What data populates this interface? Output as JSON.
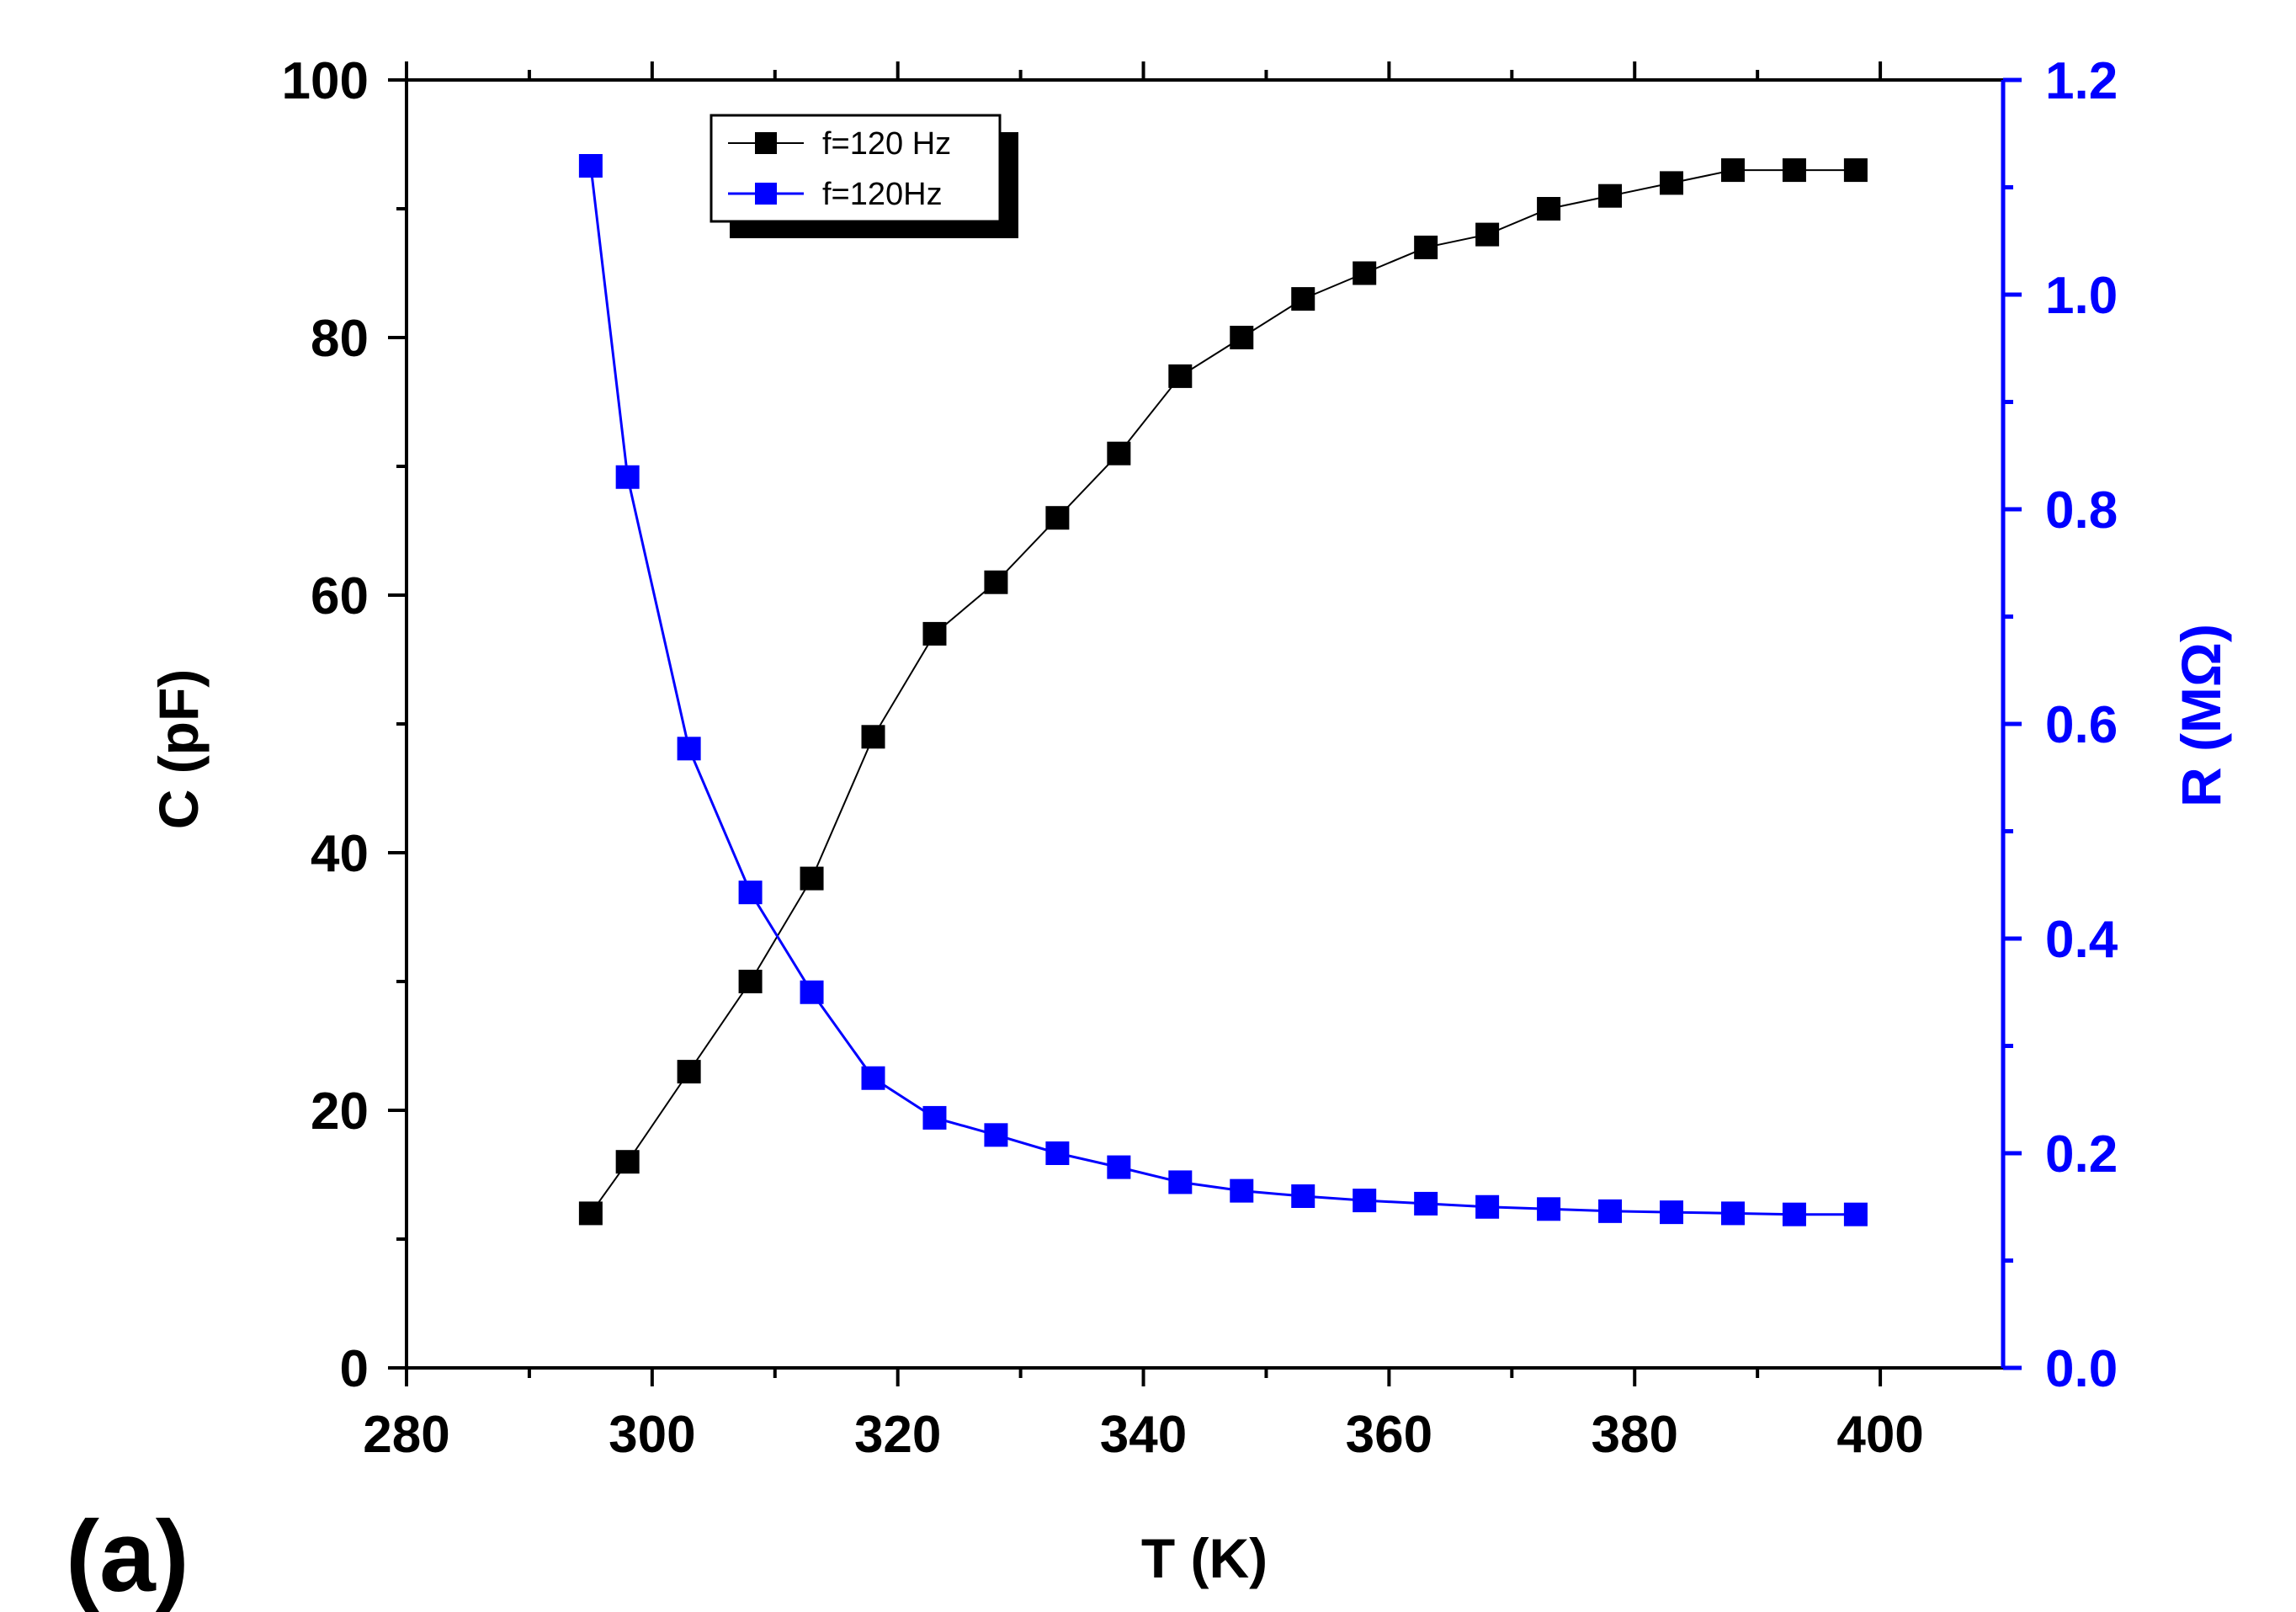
{
  "chart_data": {
    "type": "line",
    "title": "",
    "panel_label": "(a)",
    "xlabel": "T (K)",
    "ylabel": "C (pF)",
    "y2label": "R (MΩ)",
    "xlim": [
      280,
      410
    ],
    "ylim": [
      0,
      100
    ],
    "y2lim": [
      0,
      1.2
    ],
    "xticks": [
      280,
      300,
      320,
      340,
      360,
      380,
      400
    ],
    "yticks": [
      0,
      20,
      40,
      60,
      80,
      100
    ],
    "y2ticks": [
      0.0,
      0.2,
      0.4,
      0.6,
      0.8,
      1.0,
      1.2
    ],
    "y2tick_labels": [
      "0.0",
      "0.2",
      "0.4",
      "0.6",
      "0.8",
      "1.0",
      "1.2"
    ],
    "grid": false,
    "legend_position": "top-left",
    "colors": {
      "capacitance": "#000000",
      "resistance": "#0000ff",
      "axis": "#000000",
      "axis2": "#0000ff"
    },
    "series": [
      {
        "name": "f=120 Hz",
        "axis": "left",
        "x": [
          295,
          298,
          303,
          308,
          313,
          318,
          323,
          328,
          333,
          338,
          343,
          348,
          353,
          358,
          363,
          368,
          373,
          378,
          383,
          388,
          393,
          398
        ],
        "values": [
          12,
          16,
          23,
          30,
          38,
          49,
          57,
          61,
          66,
          71,
          77,
          80,
          83,
          85,
          87,
          88,
          90,
          91,
          92,
          93,
          93,
          93
        ]
      },
      {
        "name": "f=120Hz",
        "axis": "right",
        "x": [
          295,
          298,
          303,
          308,
          313,
          318,
          323,
          328,
          333,
          338,
          343,
          348,
          353,
          358,
          363,
          368,
          373,
          378,
          383,
          388,
          393,
          398
        ],
        "values": [
          1.12,
          0.83,
          0.577,
          0.443,
          0.35,
          0.27,
          0.233,
          0.217,
          0.2,
          0.187,
          0.173,
          0.165,
          0.16,
          0.156,
          0.153,
          0.15,
          0.148,
          0.146,
          0.145,
          0.144,
          0.143,
          0.143
        ]
      }
    ]
  }
}
